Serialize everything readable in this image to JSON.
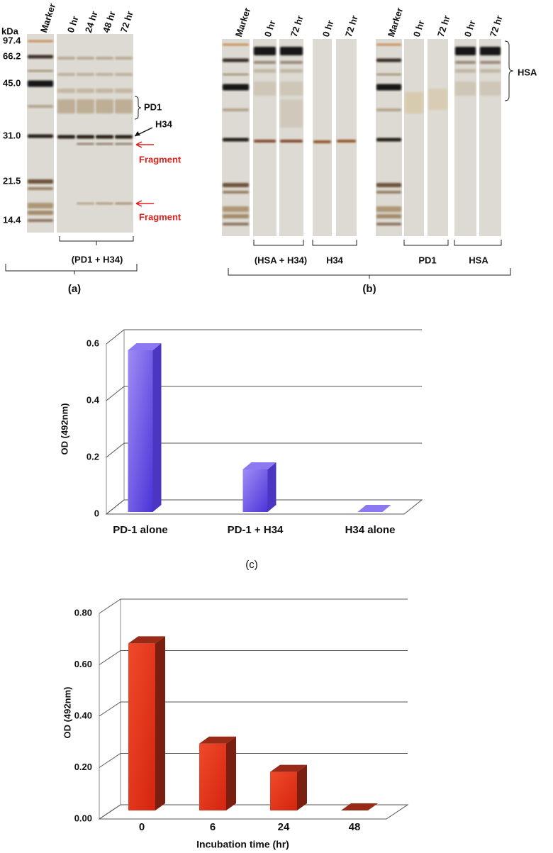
{
  "gel_a": {
    "kda_unit": "kDa",
    "markers": [
      "97.4",
      "66.2",
      "45.0",
      "31.0",
      "21.5",
      "14.4"
    ],
    "lanes": [
      "Marker",
      "0 hr",
      "24 hr",
      "48 hr",
      "72 hr"
    ],
    "labels": {
      "pd1": "PD1",
      "h34": "H34",
      "fragment_1": "Fragment",
      "fragment_2": "Fragment"
    },
    "group": "(PD1 + H34)",
    "caption": "(a)"
  },
  "gel_b": {
    "lanes": [
      "Marker",
      "0 hr",
      "72 hr",
      "0 hr",
      "72 hr",
      "Marker",
      "0 hr",
      "72 hr",
      "0 hr",
      "72 hr"
    ],
    "hsa_label": "HSA",
    "groups": [
      "(HSA + H34)",
      "H34",
      "PD1",
      "HSA"
    ],
    "caption": "(b)"
  },
  "chart_data": [
    {
      "type": "bar3d",
      "ylabel": "OD (492nm)",
      "categories": [
        "PD-1 alone",
        "PD-1 + H34",
        "H34 alone"
      ],
      "values": [
        0.57,
        0.15,
        0
      ],
      "color": "#7560e6",
      "ylim": [
        0,
        0.6
      ],
      "yticks": [
        0,
        0.2,
        0.4,
        0.6
      ],
      "grid": true,
      "caption": "(c)"
    },
    {
      "type": "bar3d",
      "ylabel": "OD (492nm)",
      "xlabel": "Incubation time (hr)",
      "categories": [
        "0",
        "6",
        "24",
        "48"
      ],
      "values": [
        0.65,
        0.26,
        0.15,
        0
      ],
      "color": "#e8341b",
      "ylim": [
        0,
        0.8
      ],
      "yticks": [
        {
          "value": 0,
          "label": "0.00"
        },
        {
          "value": 0.2,
          "label": "0.20"
        },
        {
          "value": 0.4,
          "label": "0.40"
        },
        {
          "value": 0.6,
          "label": "0.60"
        },
        {
          "value": 0.8,
          "label": "0.80"
        }
      ],
      "grid": true
    }
  ]
}
